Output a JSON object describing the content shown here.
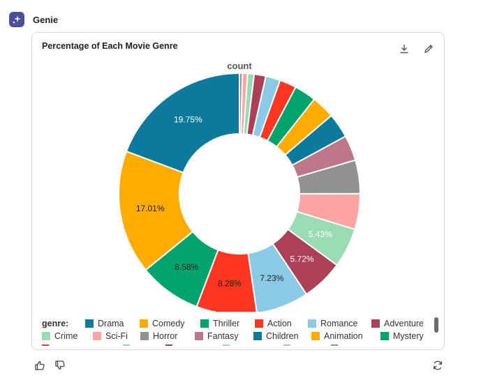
{
  "app": {
    "title": "Genie"
  },
  "card": {
    "title": "Percentage of Each Movie Genre"
  },
  "icons": {
    "download": "download-icon",
    "edit": "pencil-icon",
    "thumbs_up": "thumbs-up-icon",
    "thumbs_down": "thumbs-down-icon",
    "refresh": "refresh-icon",
    "genie": "sparkle-icon"
  },
  "chart_data": {
    "type": "pie",
    "donut": true,
    "title": "count",
    "legend_title": "genre:",
    "legend_position": "bottom",
    "slices": [
      {
        "label": "Drama",
        "percent": 19.75,
        "color": "#0b7a9c",
        "show_label": "19.75%"
      },
      {
        "label": "Comedy",
        "percent": 17.01,
        "color": "#ffab00",
        "show_label": "17.01%"
      },
      {
        "label": "Thriller",
        "percent": 8.58,
        "color": "#00a36c",
        "show_label": "8.58%"
      },
      {
        "label": "Action",
        "percent": 8.28,
        "color": "#ff3621",
        "show_label": "8.28%"
      },
      {
        "label": "Romance",
        "percent": 7.23,
        "color": "#8bcae7",
        "show_label": "7.23%"
      },
      {
        "label": "Adventure",
        "percent": 5.72,
        "color": "#ab4057",
        "show_label": "5.72%"
      },
      {
        "label": "Crime",
        "percent": 5.43,
        "color": "#99dcb4",
        "show_label": "5.43%"
      },
      {
        "label": "Sci-Fi",
        "percent": 4.9,
        "color": "#fca4a1",
        "show_label": ""
      },
      {
        "label": "Horror",
        "percent": 4.6,
        "color": "#919191",
        "show_label": ""
      },
      {
        "label": "Fantasy",
        "percent": 3.5,
        "color": "#be7788",
        "show_label": ""
      },
      {
        "label": "Children",
        "percent": 3.4,
        "color": "#0b7a9c",
        "show_label": ""
      },
      {
        "label": "Animation",
        "percent": 3.2,
        "color": "#ffab00",
        "show_label": ""
      },
      {
        "label": "Mystery",
        "percent": 3.0,
        "color": "#00a36c",
        "show_label": ""
      },
      {
        "label": "",
        "percent": 2.3,
        "color": "#ff3621",
        "show_label": ""
      },
      {
        "label": "",
        "percent": 2.0,
        "color": "#8bcae7",
        "show_label": ""
      },
      {
        "label": "",
        "percent": 1.6,
        "color": "#ab4057",
        "show_label": ""
      },
      {
        "label": "",
        "percent": 0.9,
        "color": "#99dcb4",
        "show_label": ""
      },
      {
        "label": "",
        "percent": 0.7,
        "color": "#fca4a1",
        "show_label": ""
      },
      {
        "label": "",
        "percent": 0.4,
        "color": "#919191",
        "show_label": ""
      }
    ],
    "legend_rows": [
      [
        {
          "label": "Drama",
          "color": "#0b7a9c"
        },
        {
          "label": "Comedy",
          "color": "#ffab00"
        },
        {
          "label": "Thriller",
          "color": "#00a36c"
        },
        {
          "label": "Action",
          "color": "#ff3621"
        },
        {
          "label": "Romance",
          "color": "#8bcae7"
        },
        {
          "label": "Adventure",
          "color": "#ab4057"
        }
      ],
      [
        {
          "label": "Crime",
          "color": "#99dcb4"
        },
        {
          "label": "Sci-Fi",
          "color": "#fca4a1"
        },
        {
          "label": "Horror",
          "color": "#919191"
        },
        {
          "label": "Fantasy",
          "color": "#be7788"
        },
        {
          "label": "Children",
          "color": "#0b7a9c"
        },
        {
          "label": "Animation",
          "color": "#ffab00"
        },
        {
          "label": "Mystery",
          "color": "#00a36c"
        }
      ]
    ],
    "partial_row_colors": [
      "#ff3621",
      "#8bcae7",
      "#ab4057",
      "#99dcb4",
      "#fca4a1",
      "#919191"
    ]
  }
}
